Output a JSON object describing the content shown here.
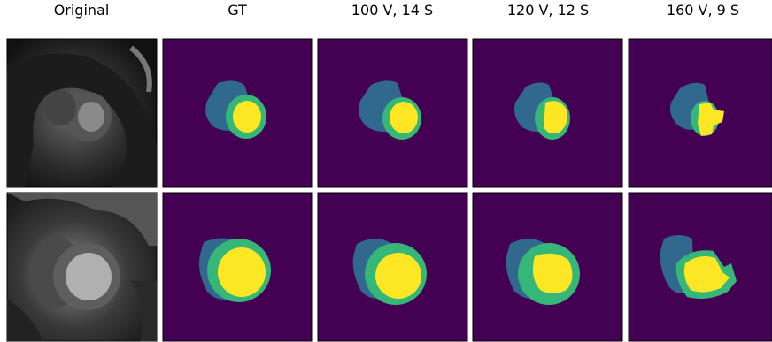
{
  "columns": [
    "Original",
    "GT",
    "100 V, 14 S",
    "120 V, 12 S",
    "160 V, 9 S"
  ]
}
